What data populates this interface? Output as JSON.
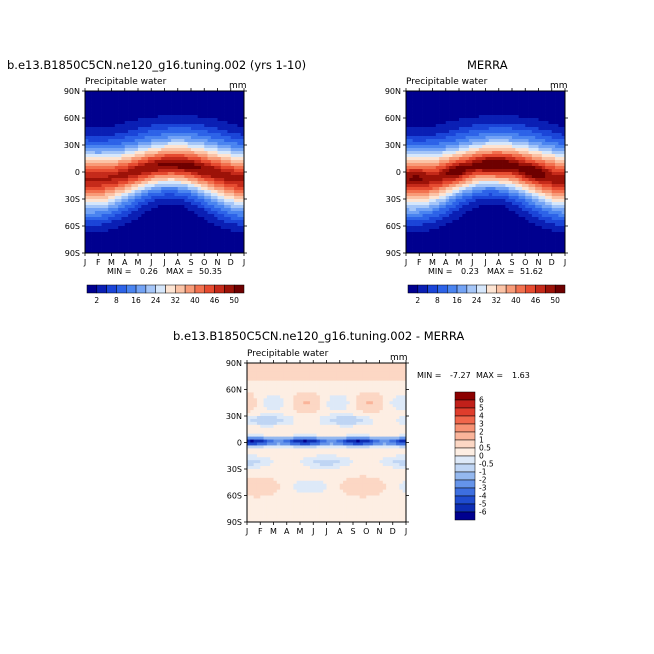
{
  "chart_data": [
    {
      "type": "heatmap",
      "title": "b.e13.B1850C5CN.ne120_g16.tuning.002 (yrs 1-10)",
      "subtitle": "Precipitable water",
      "units": "mm",
      "x_ticks": [
        "J",
        "F",
        "M",
        "A",
        "M",
        "J",
        "J",
        "A",
        "S",
        "O",
        "N",
        "D",
        "J"
      ],
      "y_ticks": [
        "90N",
        "60N",
        "30N",
        "0",
        "30S",
        "60S",
        "90S"
      ],
      "stats": {
        "min_label": "MIN =",
        "min": "0.26",
        "max_label": "MAX =",
        "max": "50.35"
      },
      "colorbar_labels": [
        "2",
        "8",
        "16",
        "24",
        "32",
        "40",
        "46",
        "50"
      ],
      "colorbar_colors": [
        "#00008f",
        "#0a1fb4",
        "#1b45d8",
        "#2d63e8",
        "#4a84f0",
        "#73a3f5",
        "#a5c6f8",
        "#d6e7fb",
        "#fde4d2",
        "#fbc3a6",
        "#f89b78",
        "#f2714f",
        "#e64b30",
        "#c52a1a",
        "#9c1208",
        "#6e0000"
      ],
      "field": {
        "model": "cam",
        "eq_max": 50.35,
        "pole_min": 0.26
      }
    },
    {
      "type": "heatmap",
      "title": "MERRA",
      "subtitle": "Precipitable water",
      "units": "mm",
      "x_ticks": [
        "J",
        "F",
        "M",
        "A",
        "M",
        "J",
        "J",
        "A",
        "S",
        "O",
        "N",
        "D",
        "J"
      ],
      "y_ticks": [
        "90N",
        "60N",
        "30N",
        "0",
        "30S",
        "60S",
        "90S"
      ],
      "stats": {
        "min_label": "MIN =",
        "min": "0.23",
        "max_label": "MAX =",
        "max": "51.62"
      },
      "colorbar_labels": [
        "2",
        "8",
        "16",
        "24",
        "32",
        "40",
        "46",
        "50"
      ],
      "colorbar_colors": [
        "#00008f",
        "#0a1fb4",
        "#1b45d8",
        "#2d63e8",
        "#4a84f0",
        "#73a3f5",
        "#a5c6f8",
        "#d6e7fb",
        "#fde4d2",
        "#fbc3a6",
        "#f89b78",
        "#f2714f",
        "#e64b30",
        "#c52a1a",
        "#9c1208",
        "#6e0000"
      ],
      "field": {
        "model": "obs",
        "eq_max": 51.62,
        "pole_min": 0.23
      }
    },
    {
      "type": "heatmap",
      "title": "b.e13.B1850C5CN.ne120_g16.tuning.002 - MERRA",
      "subtitle": "Precipitable water",
      "units": "mm",
      "x_ticks": [
        "J",
        "F",
        "M",
        "A",
        "M",
        "J",
        "J",
        "A",
        "S",
        "O",
        "N",
        "D",
        "J"
      ],
      "y_ticks": [
        "90N",
        "60N",
        "30N",
        "0",
        "30S",
        "60S",
        "90S"
      ],
      "stats": {
        "min_label": "MIN =",
        "min": "-7.27",
        "max_label": "MAX =",
        "max": "1.63"
      },
      "colorbar_labels": [
        "6",
        "5",
        "4",
        "3",
        "2",
        "1",
        "0.5",
        "0",
        "-0.5",
        "-1",
        "-2",
        "-3",
        "-4",
        "-5",
        "-6"
      ],
      "colorbar_colors": [
        "#8c0000",
        "#c1201a",
        "#df3d2c",
        "#f0664b",
        "#f79274",
        "#fab49a",
        "#fcd7c4",
        "#fdeee3",
        "#dde9f8",
        "#bfd5f4",
        "#94b8ef",
        "#6594ea",
        "#3d6fe0",
        "#1f4ccf",
        "#0d2db3",
        "#00008f"
      ],
      "field": {
        "model": "diff",
        "min": -7.27,
        "max": 1.63
      }
    }
  ]
}
